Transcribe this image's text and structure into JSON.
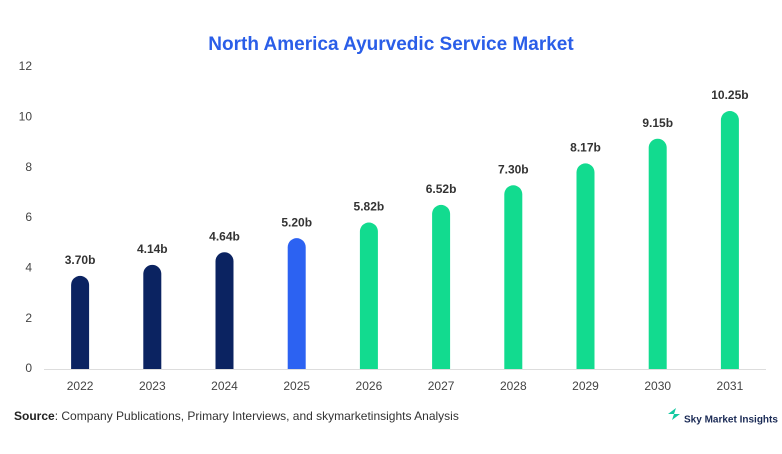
{
  "chart_data": {
    "type": "bar",
    "title": "North America Ayurvedic Service Market",
    "categories": [
      "2022",
      "2023",
      "2024",
      "2025",
      "2026",
      "2027",
      "2028",
      "2029",
      "2030",
      "2031"
    ],
    "values": [
      3.7,
      4.14,
      4.64,
      5.2,
      5.82,
      6.52,
      7.3,
      8.17,
      9.15,
      10.25
    ],
    "value_labels": [
      "3.70b",
      "4.14b",
      "4.64b",
      "5.20b",
      "5.82b",
      "6.52b",
      "7.30b",
      "8.17b",
      "9.15b",
      "10.25b"
    ],
    "colors": [
      "#0b2361",
      "#0b2361",
      "#0b2361",
      "#2c62f2",
      "#12db8f",
      "#12db8f",
      "#12db8f",
      "#12db8f",
      "#12db8f",
      "#12db8f"
    ],
    "ylim": [
      0,
      12
    ],
    "yticks": [
      0,
      2,
      4,
      6,
      8,
      10,
      12
    ],
    "grid": false
  },
  "footer": {
    "source_label": "Source",
    "source_text": ": Company Publications, Primary Interviews, and skymarketinsights Analysis",
    "brand": "Sky Market Insights"
  }
}
